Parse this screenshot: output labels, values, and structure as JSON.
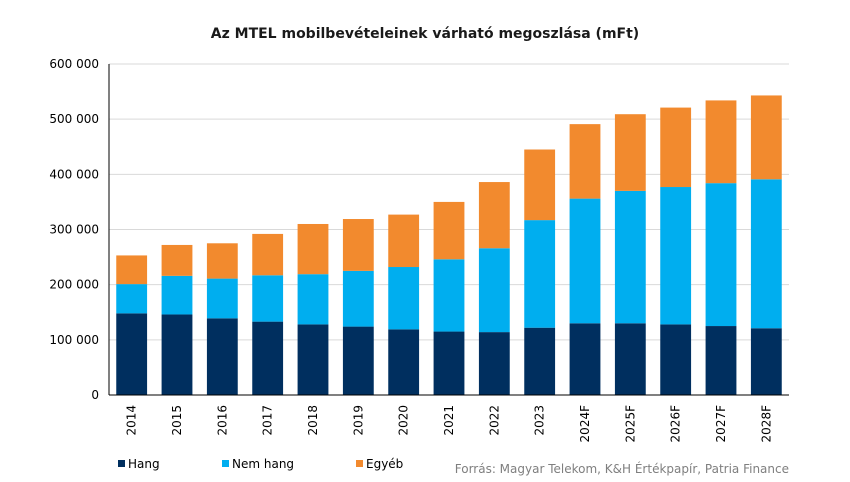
{
  "chart_data": {
    "type": "bar",
    "stacked": true,
    "title": "Az MTEL mobilbevételeinek várható megoszlása (mFt)",
    "xlabel": "",
    "ylabel": "",
    "ylim": [
      0,
      600000
    ],
    "yticks": [
      0,
      100000,
      200000,
      300000,
      400000,
      500000,
      600000
    ],
    "ytick_labels": [
      "0",
      "100 000",
      "200 000",
      "300 000",
      "400 000",
      "500 000",
      "600 000"
    ],
    "grid": true,
    "legend_position": "bottom-left",
    "categories": [
      "2014",
      "2015",
      "2016",
      "2017",
      "2018",
      "2019",
      "2020",
      "2021",
      "2022",
      "2023",
      "2024F",
      "2025F",
      "2026F",
      "2027F",
      "2028F"
    ],
    "series": [
      {
        "name": "Hang",
        "color": "#002F5F",
        "values": [
          148000,
          146000,
          139000,
          133000,
          128000,
          124000,
          119000,
          115000,
          114000,
          122000,
          130000,
          130000,
          128000,
          125000,
          121000
        ]
      },
      {
        "name": "Nem hang",
        "color": "#00AEEF",
        "values": [
          53000,
          70000,
          72000,
          84000,
          91000,
          101000,
          113000,
          131000,
          152000,
          195000,
          226000,
          240000,
          249000,
          259000,
          270000
        ]
      },
      {
        "name": "Egyéb",
        "color": "#F28A2E",
        "values": [
          52000,
          56000,
          64000,
          75000,
          91000,
          94000,
          95000,
          104000,
          120000,
          128000,
          135000,
          139000,
          144000,
          150000,
          152000
        ]
      }
    ]
  },
  "source_text": "Forrás: Magyar Telekom, K&H Értékpapír, Patria Finance"
}
